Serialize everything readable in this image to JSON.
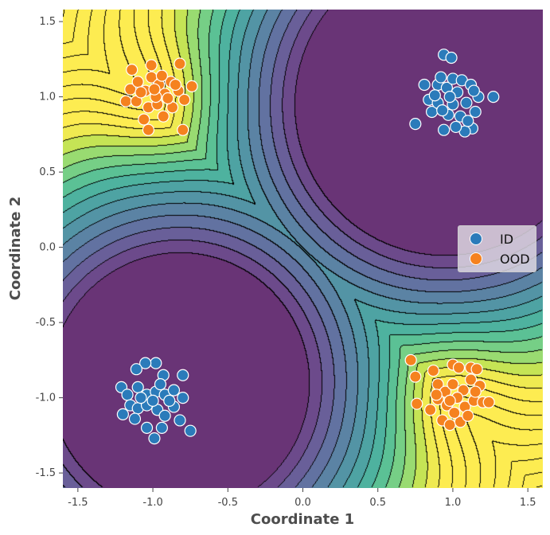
{
  "chart_data": {
    "type": "scatter",
    "title": "",
    "xlabel": "Coordinate 1",
    "ylabel": "Coordinate 2",
    "xlim": [
      -1.6,
      1.6
    ],
    "ylim": [
      -1.6,
      1.58
    ],
    "xticks": [
      "-1.5",
      "-1.0",
      "-0.5",
      "0.0",
      "0.5",
      "1.0",
      "1.5"
    ],
    "xtick_values": [
      -1.5,
      -1.0,
      -0.5,
      0.0,
      0.5,
      1.0,
      1.5
    ],
    "yticks": [
      "-1.5",
      "-1.0",
      "-0.5",
      "0.0",
      "0.5",
      "1.0",
      "1.5"
    ],
    "ytick_values": [
      -1.5,
      -1.0,
      -0.5,
      0.0,
      0.5,
      1.0,
      1.5
    ],
    "grid": false,
    "legend_position": "center-right",
    "series": [
      {
        "name": "ID",
        "color": "#2b7bba",
        "points": [
          [
            0.94,
            1.28
          ],
          [
            0.99,
            1.26
          ],
          [
            0.81,
            1.08
          ],
          [
            0.84,
            0.98
          ],
          [
            0.75,
            0.82
          ],
          [
            0.86,
            0.9
          ],
          [
            0.9,
            1.08
          ],
          [
            0.92,
            1.13
          ],
          [
            0.96,
            1.06
          ],
          [
            1.0,
            1.12
          ],
          [
            1.03,
            1.03
          ],
          [
            1.06,
            1.11
          ],
          [
            1.09,
            0.96
          ],
          [
            1.12,
            1.08
          ],
          [
            1.15,
            0.9
          ],
          [
            1.13,
            0.79
          ],
          [
            1.08,
            0.77
          ],
          [
            1.02,
            0.8
          ],
          [
            0.94,
            0.78
          ],
          [
            0.97,
            0.88
          ],
          [
            1.0,
            0.95
          ],
          [
            1.05,
            0.87
          ],
          [
            0.9,
            0.96
          ],
          [
            0.88,
            1.01
          ],
          [
            1.27,
            1.0
          ],
          [
            1.17,
            1.0
          ],
          [
            1.14,
            1.04
          ],
          [
            0.98,
            1.0
          ],
          [
            1.1,
            0.84
          ],
          [
            0.93,
            0.91
          ],
          [
            -0.98,
            -0.77
          ],
          [
            -1.05,
            -0.77
          ],
          [
            -1.11,
            -0.81
          ],
          [
            -0.8,
            -0.85
          ],
          [
            -0.93,
            -0.85
          ],
          [
            -1.21,
            -0.93
          ],
          [
            -1.17,
            -0.98
          ],
          [
            -1.1,
            -0.93
          ],
          [
            -1.04,
            -0.98
          ],
          [
            -0.98,
            -0.96
          ],
          [
            -0.92,
            -0.98
          ],
          [
            -0.86,
            -0.95
          ],
          [
            -0.8,
            -1.0
          ],
          [
            -1.2,
            -1.11
          ],
          [
            -1.15,
            -1.05
          ],
          [
            -1.1,
            -1.07
          ],
          [
            -1.04,
            -1.05
          ],
          [
            -0.97,
            -1.08
          ],
          [
            -0.92,
            -1.12
          ],
          [
            -0.86,
            -1.06
          ],
          [
            -0.82,
            -1.15
          ],
          [
            -0.75,
            -1.22
          ],
          [
            -0.99,
            -1.27
          ],
          [
            -1.04,
            -1.2
          ],
          [
            -1.12,
            -1.14
          ],
          [
            -0.94,
            -1.2
          ],
          [
            -0.89,
            -1.02
          ],
          [
            -1.0,
            -1.02
          ],
          [
            -1.08,
            -1.0
          ],
          [
            -0.95,
            -0.91
          ]
        ]
      },
      {
        "name": "OOD",
        "color": "#f5821f",
        "points": [
          [
            -1.01,
            1.21
          ],
          [
            -0.82,
            1.22
          ],
          [
            -1.14,
            1.18
          ],
          [
            -0.74,
            1.07
          ],
          [
            -1.18,
            0.97
          ],
          [
            -1.15,
            1.05
          ],
          [
            -1.1,
            1.1
          ],
          [
            -1.05,
            1.04
          ],
          [
            -1.01,
            1.13
          ],
          [
            -0.96,
            1.08
          ],
          [
            -0.92,
            1.02
          ],
          [
            -0.88,
            1.1
          ],
          [
            -0.83,
            1.04
          ],
          [
            -0.79,
            0.98
          ],
          [
            -1.03,
            0.93
          ],
          [
            -0.97,
            0.95
          ],
          [
            -0.93,
            0.87
          ],
          [
            -0.87,
            0.93
          ],
          [
            -1.03,
            0.78
          ],
          [
            -0.8,
            0.78
          ],
          [
            -1.11,
            0.97
          ],
          [
            -0.98,
            1.0
          ],
          [
            -0.9,
            0.99
          ],
          [
            -1.06,
            0.85
          ],
          [
            -0.85,
            1.08
          ],
          [
            -0.94,
            1.14
          ],
          [
            -1.08,
            1.03
          ],
          [
            -0.99,
            1.05
          ],
          [
            0.72,
            -0.75
          ],
          [
            0.75,
            -0.86
          ],
          [
            0.87,
            -0.82
          ],
          [
            1.0,
            -0.78
          ],
          [
            1.04,
            -0.8
          ],
          [
            1.12,
            -0.8
          ],
          [
            1.16,
            -0.81
          ],
          [
            0.9,
            -0.91
          ],
          [
            0.95,
            -0.96
          ],
          [
            1.0,
            -0.91
          ],
          [
            1.07,
            -0.95
          ],
          [
            1.12,
            -0.88
          ],
          [
            1.18,
            -0.92
          ],
          [
            0.76,
            -1.04
          ],
          [
            0.85,
            -1.08
          ],
          [
            0.9,
            -1.01
          ],
          [
            0.96,
            -1.05
          ],
          [
            1.03,
            -1.0
          ],
          [
            1.08,
            -1.06
          ],
          [
            1.14,
            -1.02
          ],
          [
            1.2,
            -1.03
          ],
          [
            1.24,
            -1.03
          ],
          [
            0.93,
            -1.15
          ],
          [
            0.98,
            -1.18
          ],
          [
            1.05,
            -1.16
          ],
          [
            1.1,
            -1.12
          ],
          [
            1.01,
            -1.1
          ],
          [
            0.89,
            -0.98
          ],
          [
            1.15,
            -0.96
          ],
          [
            0.98,
            -1.02
          ]
        ]
      }
    ]
  }
}
